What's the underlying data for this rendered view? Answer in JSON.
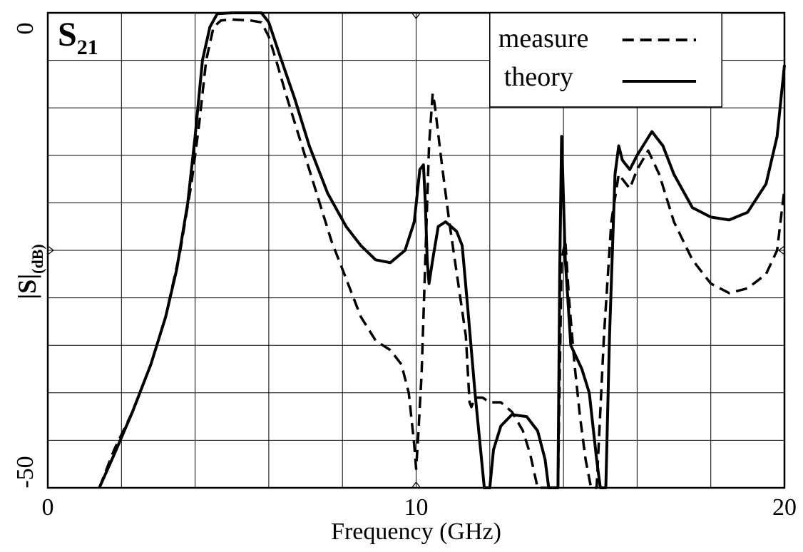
{
  "chart_data": {
    "type": "line",
    "title": "",
    "param_label": {
      "main": "S",
      "sub": "21"
    },
    "xlabel": "Frequency (GHz)",
    "ylabel": {
      "main": "|S|",
      "sub": "(dB)"
    },
    "xlim": [
      0,
      20
    ],
    "ylim": [
      -50,
      0
    ],
    "x_tick_labels": [
      "0",
      "10",
      "20"
    ],
    "y_tick_labels": [
      "0",
      "-50"
    ],
    "grid": true,
    "legend_position": "top-right",
    "series": [
      {
        "name": "measure",
        "style": "dashed",
        "color": "#000000",
        "points": [
          [
            1.4,
            -50
          ],
          [
            1.8,
            -46
          ],
          [
            2.3,
            -42
          ],
          [
            2.8,
            -37
          ],
          [
            3.2,
            -32
          ],
          [
            3.6,
            -25
          ],
          [
            3.9,
            -18
          ],
          [
            4.1,
            -12
          ],
          [
            4.3,
            -5
          ],
          [
            4.5,
            -1.5
          ],
          [
            4.7,
            -0.8
          ],
          [
            5.0,
            -0.7
          ],
          [
            5.5,
            -0.8
          ],
          [
            5.8,
            -1.0
          ],
          [
            6.0,
            -2.5
          ],
          [
            6.2,
            -5
          ],
          [
            6.5,
            -9
          ],
          [
            6.9,
            -14
          ],
          [
            7.3,
            -19
          ],
          [
            7.7,
            -24
          ],
          [
            8.1,
            -28
          ],
          [
            8.5,
            -32
          ],
          [
            8.9,
            -34.5
          ],
          [
            9.3,
            -35.5
          ],
          [
            9.6,
            -37
          ],
          [
            9.8,
            -40
          ],
          [
            9.95,
            -45.5
          ],
          [
            10.0,
            -48
          ],
          [
            10.05,
            -45
          ],
          [
            10.15,
            -38
          ],
          [
            10.25,
            -26
          ],
          [
            10.35,
            -14
          ],
          [
            10.45,
            -8.5
          ],
          [
            10.5,
            -9.5
          ],
          [
            10.7,
            -16
          ],
          [
            10.9,
            -22
          ],
          [
            11.2,
            -30
          ],
          [
            11.35,
            -34
          ],
          [
            11.45,
            -41
          ],
          [
            11.5,
            -41.5
          ],
          [
            11.6,
            -40.5
          ],
          [
            11.8,
            -40.5
          ],
          [
            12.0,
            -41.0
          ],
          [
            12.3,
            -41.0
          ],
          [
            12.6,
            -42.0
          ],
          [
            12.9,
            -44
          ],
          [
            13.1,
            -46.5
          ],
          [
            13.3,
            -50
          ],
          [
            13.85,
            -50
          ],
          [
            13.95,
            -26
          ],
          [
            14.05,
            -24
          ],
          [
            14.15,
            -30
          ],
          [
            14.3,
            -37
          ],
          [
            14.45,
            -42.5
          ],
          [
            14.6,
            -47
          ],
          [
            14.75,
            -50
          ],
          [
            14.9,
            -50
          ],
          [
            15.1,
            -34
          ],
          [
            15.3,
            -22
          ],
          [
            15.5,
            -17
          ],
          [
            15.8,
            -18.5
          ],
          [
            16.0,
            -16.5
          ],
          [
            16.3,
            -14.5
          ],
          [
            16.6,
            -17
          ],
          [
            17.0,
            -22
          ],
          [
            17.5,
            -26
          ],
          [
            18.0,
            -28.5
          ],
          [
            18.5,
            -29.5
          ],
          [
            19.0,
            -29
          ],
          [
            19.5,
            -27.5
          ],
          [
            19.8,
            -25
          ],
          [
            20.0,
            -18.5
          ]
        ]
      },
      {
        "name": "theory",
        "style": "solid",
        "color": "#000000",
        "points": [
          [
            1.4,
            -50
          ],
          [
            1.8,
            -46.5
          ],
          [
            2.3,
            -42
          ],
          [
            2.8,
            -37
          ],
          [
            3.2,
            -32
          ],
          [
            3.5,
            -27
          ],
          [
            3.8,
            -20
          ],
          [
            4.0,
            -13
          ],
          [
            4.2,
            -5
          ],
          [
            4.4,
            -1.5
          ],
          [
            4.6,
            -0.1
          ],
          [
            5.0,
            0
          ],
          [
            5.5,
            0
          ],
          [
            5.8,
            0
          ],
          [
            6.0,
            -1
          ],
          [
            6.3,
            -4.5
          ],
          [
            6.7,
            -9
          ],
          [
            7.1,
            -14
          ],
          [
            7.6,
            -19
          ],
          [
            8.1,
            -22.5
          ],
          [
            8.5,
            -24.5
          ],
          [
            8.9,
            -26
          ],
          [
            9.3,
            -26.3
          ],
          [
            9.7,
            -25
          ],
          [
            9.95,
            -22
          ],
          [
            10.1,
            -16.5
          ],
          [
            10.2,
            -16
          ],
          [
            10.25,
            -20
          ],
          [
            10.3,
            -26
          ],
          [
            10.35,
            -28.5
          ],
          [
            10.45,
            -26
          ],
          [
            10.6,
            -22.5
          ],
          [
            10.8,
            -22
          ],
          [
            11.1,
            -23
          ],
          [
            11.25,
            -24.5
          ],
          [
            11.4,
            -31
          ],
          [
            11.6,
            -40
          ],
          [
            11.75,
            -46
          ],
          [
            11.85,
            -50
          ],
          [
            12.0,
            -50
          ],
          [
            12.1,
            -46
          ],
          [
            12.3,
            -43.5
          ],
          [
            12.6,
            -42.3
          ],
          [
            13.0,
            -42.5
          ],
          [
            13.3,
            -44
          ],
          [
            13.5,
            -47
          ],
          [
            13.6,
            -50
          ],
          [
            13.85,
            -50
          ],
          [
            13.9,
            -27
          ],
          [
            13.95,
            -13
          ],
          [
            14.05,
            -26
          ],
          [
            14.2,
            -35
          ],
          [
            14.5,
            -37.5
          ],
          [
            14.7,
            -40
          ],
          [
            14.9,
            -47
          ],
          [
            15.0,
            -50
          ],
          [
            15.15,
            -50
          ],
          [
            15.25,
            -34
          ],
          [
            15.4,
            -17
          ],
          [
            15.5,
            -14
          ],
          [
            15.6,
            -15.5
          ],
          [
            15.8,
            -16.5
          ],
          [
            16.0,
            -15
          ],
          [
            16.4,
            -12.5
          ],
          [
            16.7,
            -14
          ],
          [
            17.0,
            -17
          ],
          [
            17.5,
            -20.5
          ],
          [
            18.0,
            -21.5
          ],
          [
            18.5,
            -21.8
          ],
          [
            19.0,
            -21
          ],
          [
            19.5,
            -18
          ],
          [
            19.8,
            -13
          ],
          [
            20.0,
            -5.5
          ]
        ]
      }
    ]
  }
}
